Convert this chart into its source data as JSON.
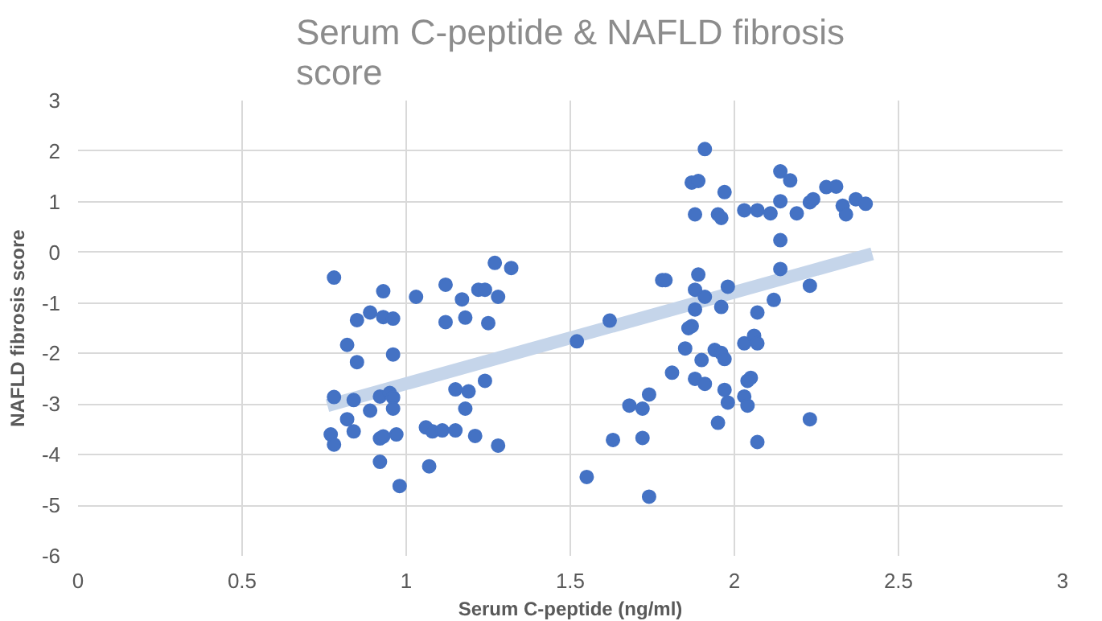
{
  "chart_data": {
    "type": "scatter",
    "title": "Serum C-peptide & NAFLD fibrosis score",
    "xlabel": "Serum C-peptide (ng/ml)",
    "ylabel": "NAFLD fibrosis score",
    "xlim": [
      0,
      3
    ],
    "xticks": [
      0,
      0.5,
      1,
      1.5,
      2,
      2.5,
      3
    ],
    "ylim": [
      -6,
      3
    ],
    "yticks": [
      -6,
      -5,
      -4,
      -3,
      -2,
      -1,
      0,
      1,
      2,
      3
    ],
    "grid": true,
    "marker": "circle",
    "series": [
      {
        "color": "#4472c4",
        "x": [
          0.78,
          0.93,
          1.03,
          1.12,
          1.17,
          1.22,
          1.24,
          1.28,
          1.27,
          1.32,
          0.85,
          0.89,
          0.93,
          0.96,
          1.12,
          1.18,
          1.25,
          0.82,
          0.85,
          0.96,
          0.78,
          0.84,
          0.89,
          0.92,
          0.95,
          0.96,
          0.96,
          1.15,
          1.19,
          1.24,
          1.18,
          0.82,
          0.84,
          0.77,
          0.78,
          0.92,
          0.93,
          0.97,
          1.06,
          1.08,
          1.11,
          1.15,
          1.21,
          1.28,
          0.92,
          1.07,
          0.98,
          1.91,
          1.87,
          1.89,
          1.97,
          1.88,
          1.95,
          1.96,
          2.03,
          2.07,
          2.11,
          2.14,
          2.17,
          2.14,
          2.14,
          2.14,
          1.78,
          1.79,
          1.89,
          1.88,
          1.91,
          1.98,
          1.96,
          1.88,
          2.07,
          2.12,
          1.87,
          1.86,
          1.62,
          1.52,
          1.85,
          1.9,
          1.94,
          1.96,
          1.97,
          2.03,
          2.06,
          2.07,
          1.81,
          1.88,
          1.91,
          1.97,
          1.98,
          2.05,
          2.04,
          2.03,
          2.04,
          1.74,
          1.68,
          1.72,
          1.95,
          1.63,
          1.72,
          2.07,
          1.55,
          1.74,
          2.19,
          2.23,
          2.24,
          2.28,
          2.31,
          2.33,
          2.34,
          2.37,
          2.4,
          2.23,
          2.23
        ],
        "values": [
          -0.5,
          -0.77,
          -0.88,
          -0.64,
          -0.93,
          -0.74,
          -0.74,
          -0.88,
          -0.21,
          -0.31,
          -1.34,
          -1.19,
          -1.28,
          -1.31,
          -1.38,
          -1.29,
          -1.4,
          -1.83,
          -2.17,
          -2.02,
          -2.86,
          -2.92,
          -3.13,
          -2.85,
          -2.78,
          -2.87,
          -3.09,
          -2.71,
          -2.75,
          -2.54,
          -3.09,
          -3.3,
          -3.54,
          -3.6,
          -3.8,
          -3.68,
          -3.64,
          -3.6,
          -3.46,
          -3.54,
          -3.52,
          -3.52,
          -3.63,
          -3.82,
          -4.14,
          -4.23,
          -4.62,
          2.04,
          1.38,
          1.41,
          1.19,
          0.75,
          0.75,
          0.68,
          0.83,
          0.83,
          0.77,
          1.6,
          1.42,
          1.01,
          0.24,
          -0.33,
          -0.55,
          -0.55,
          -0.44,
          -0.74,
          -0.88,
          -0.68,
          -1.08,
          -1.13,
          -1.19,
          -0.94,
          -1.46,
          -1.5,
          -1.35,
          -1.76,
          -1.9,
          -2.13,
          -1.93,
          -1.99,
          -2.11,
          -1.8,
          -1.65,
          -1.8,
          -2.38,
          -2.5,
          -2.6,
          -2.72,
          -2.97,
          -2.48,
          -2.54,
          -2.85,
          -3.03,
          -2.81,
          -3.03,
          -3.09,
          -3.37,
          -3.71,
          -3.67,
          -3.75,
          -4.44,
          -4.83,
          0.77,
          0.99,
          1.05,
          1.29,
          1.3,
          0.92,
          0.75,
          1.05,
          0.96,
          -0.66,
          -3.3
        ]
      },
      {
        "type": "line",
        "color": "#c5d5ea",
        "marker": "none",
        "x": [
          0.76,
          2.42
        ],
        "values": [
          -3.03,
          -0.03
        ]
      }
    ]
  }
}
